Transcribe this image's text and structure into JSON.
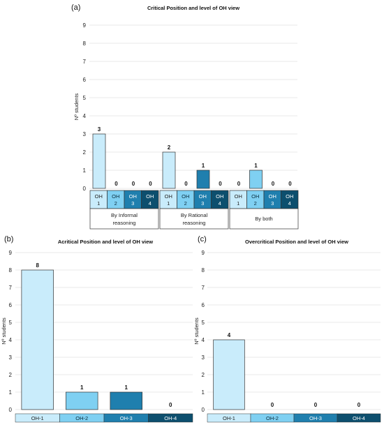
{
  "colors": {
    "oh1": "#c9ecfb",
    "oh2": "#7fd0f2",
    "oh3": "#1f7fae",
    "oh4": "#0d4f6e",
    "bar_stroke": "#333333"
  },
  "chart_data": [
    {
      "panel": "(a)",
      "type": "bar",
      "title": "Critical Position and level of OH view",
      "ylabel": "Nº students",
      "ylim": [
        0,
        9
      ],
      "yticks": [
        0,
        1,
        2,
        3,
        4,
        5,
        6,
        7,
        8,
        9
      ],
      "groups": [
        {
          "label": "By Informal reasoning",
          "categories": [
            "OH 1",
            "OH 2",
            "OH 3",
            "OH 4"
          ],
          "values": [
            3,
            0,
            0,
            0
          ]
        },
        {
          "label": "By Rational reasoning",
          "categories": [
            "OH 1",
            "OH 2",
            "OH 3",
            "OH 4"
          ],
          "values": [
            2,
            0,
            1,
            0
          ]
        },
        {
          "label": "By both",
          "categories": [
            "OH 1",
            "OH 2",
            "OH 3",
            "OH 4"
          ],
          "values": [
            0,
            1,
            0,
            0
          ]
        }
      ]
    },
    {
      "panel": "(b)",
      "type": "bar",
      "title": "Acritical Position and level of OH view",
      "ylabel": "Nº students",
      "ylim": [
        0,
        9
      ],
      "yticks": [
        0,
        1,
        2,
        3,
        4,
        5,
        6,
        7,
        8,
        9
      ],
      "categories": [
        "OH-1",
        "OH-2",
        "OH-3",
        "OH-4"
      ],
      "values": [
        8,
        1,
        1,
        0
      ]
    },
    {
      "panel": "(c)",
      "type": "bar",
      "title": "Overcritical Position and level of OH view",
      "ylabel": "Nº students",
      "ylim": [
        0,
        9
      ],
      "yticks": [
        0,
        1,
        2,
        3,
        4,
        5,
        6,
        7,
        8,
        9
      ],
      "categories": [
        "OH-1",
        "OH-2",
        "OH-3",
        "OH-4"
      ],
      "values": [
        4,
        0,
        0,
        0
      ]
    }
  ]
}
